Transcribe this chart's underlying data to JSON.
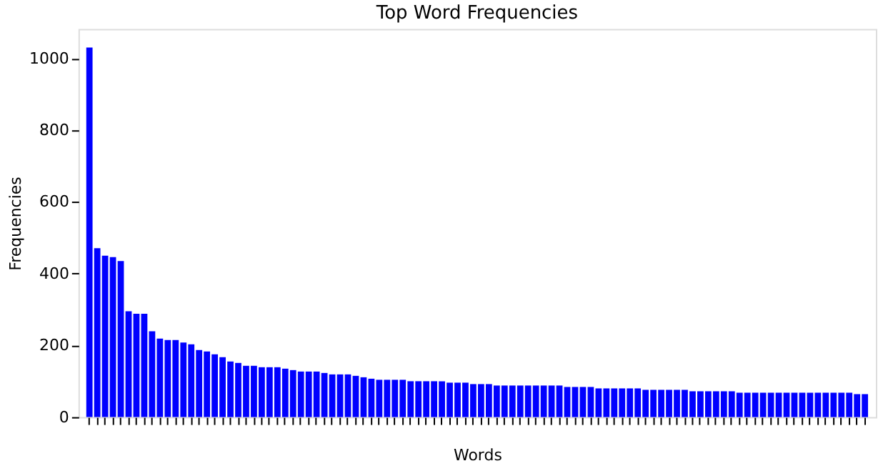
{
  "chart_data": {
    "type": "bar",
    "title": "Top Word Frequencies",
    "xlabel": "Words",
    "ylabel": "Frequencies",
    "categories": [
      null,
      null,
      null,
      null,
      null,
      null,
      null,
      null,
      null,
      null,
      null,
      null,
      null,
      null,
      null,
      null,
      null,
      null,
      null,
      null,
      null,
      null,
      null,
      null,
      null,
      null,
      null,
      null,
      null,
      null,
      null,
      null,
      null,
      null,
      null,
      null,
      null,
      null,
      null,
      null,
      null,
      null,
      null,
      null,
      null,
      null,
      null,
      null,
      null,
      null,
      null,
      null,
      null,
      null,
      null,
      null,
      null,
      null,
      null,
      null,
      null,
      null,
      null,
      null,
      null,
      null,
      null,
      null,
      null,
      null,
      null,
      null,
      null,
      null,
      null,
      null,
      null,
      null,
      null,
      null,
      null,
      null,
      null,
      null,
      null,
      null,
      null,
      null,
      null,
      null,
      null,
      null,
      null,
      null,
      null,
      null,
      null,
      null,
      null,
      null
    ],
    "values": [
      1030,
      471,
      450,
      446,
      435,
      295,
      288,
      288,
      239,
      219,
      215,
      215,
      208,
      203,
      187,
      183,
      175,
      167,
      155,
      151,
      143,
      143,
      139,
      139,
      139,
      135,
      131,
      127,
      127,
      127,
      123,
      119,
      119,
      119,
      115,
      111,
      107,
      104,
      104,
      104,
      104,
      100,
      100,
      100,
      100,
      100,
      96,
      96,
      96,
      92,
      92,
      92,
      88,
      88,
      88,
      88,
      88,
      88,
      88,
      88,
      88,
      84,
      84,
      84,
      84,
      80,
      80,
      80,
      80,
      80,
      80,
      76,
      76,
      76,
      76,
      76,
      76,
      72,
      72,
      72,
      72,
      72,
      72,
      68,
      68,
      68,
      68,
      68,
      68,
      68,
      68,
      68,
      68,
      68,
      68,
      68,
      68,
      68,
      64,
      64
    ],
    "color": "#0000ff",
    "ylim": [
      0,
      1082
    ],
    "yticks": [
      0,
      200,
      400,
      600,
      800,
      1000
    ],
    "grid": false
  }
}
